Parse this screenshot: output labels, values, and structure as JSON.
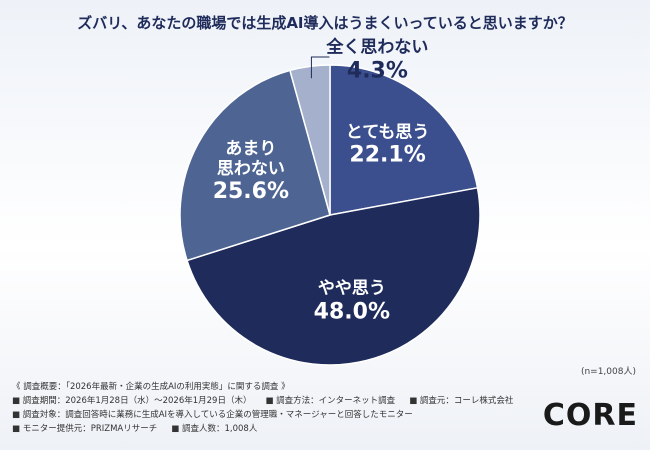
{
  "chart_data": {
    "type": "pie",
    "title": "ズバリ、あなたの職場では生成AI導入はうまくいっていると思いますか？",
    "categories": [
      "とても思う",
      "やや思う",
      "あまり\n思わない",
      "全く思わない"
    ],
    "values": [
      22.1,
      48.0,
      25.6,
      4.3
    ],
    "value_labels": [
      "22.1%",
      "48.0%",
      "25.6%",
      "4.3%"
    ],
    "colors": [
      "#3b4f8e",
      "#1f2c5b",
      "#4e6593",
      "#a5b1cc"
    ],
    "start_angle": -90,
    "direction": "clockwise",
    "note": "(n=1,008人)"
  },
  "footer": {
    "summary": "《 調査概要：「2026年最新・企業の生成AIの利用実態」に関する調査 》",
    "lines": [
      [
        "■ 調査期間：2026年1月28日（水）～2026年1月29日（木）",
        "■ 調査方法：インターネット調査",
        "■ 調査元：コーレ株式会社"
      ],
      [
        "■ 調査対象：調査回答時に業務に生成AIを導入している企業の管理職・マネージャーと回答したモニター"
      ],
      [
        "■ モニター提供元：PRIZMAリサーチ",
        "■ 調査人数：1,008人"
      ]
    ],
    "logo": "CORE"
  }
}
